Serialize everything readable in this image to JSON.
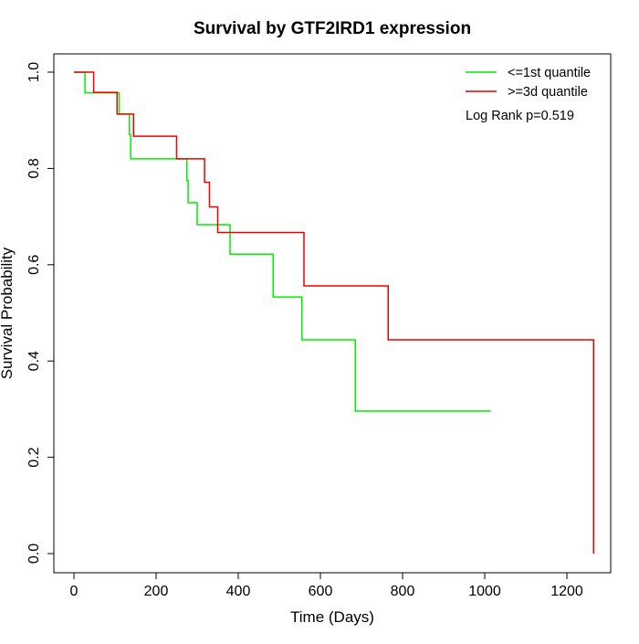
{
  "chart_data": {
    "type": "line",
    "title": "Survival by GTF2IRD1 expression",
    "xlabel": "Time (Days)",
    "ylabel": "Survival Probability",
    "xlim": [
      0,
      1280
    ],
    "ylim": [
      0,
      1.0
    ],
    "xticks": [
      0,
      200,
      400,
      600,
      800,
      1000,
      1200
    ],
    "yticks": [
      0.0,
      0.2,
      0.4,
      0.6,
      0.8,
      1.0
    ],
    "xtick_labels": [
      "0",
      "200",
      "400",
      "600",
      "800",
      "1000",
      "1200"
    ],
    "ytick_labels": [
      "0.0",
      "0.2",
      "0.4",
      "0.6",
      "0.8",
      "1.0"
    ],
    "grid": false,
    "legend_position": "top-right",
    "annotation": "Log Rank p=0.519",
    "series": [
      {
        "name": "<=1st quantile",
        "color": "#00ee00",
        "step": true,
        "x": [
          0,
          27,
          110,
          135,
          138,
          275,
          278,
          300,
          380,
          485,
          555,
          685,
          1015
        ],
        "y": [
          1.0,
          0.957,
          0.913,
          0.87,
          0.82,
          0.775,
          0.729,
          0.683,
          0.622,
          0.533,
          0.444,
          0.296,
          0.296
        ]
      },
      {
        "name": ">=3d quantile",
        "color": "#ee0000",
        "step": true,
        "x": [
          0,
          48,
          105,
          145,
          250,
          318,
          330,
          350,
          560,
          765,
          1265,
          1265
        ],
        "y": [
          1.0,
          0.958,
          0.913,
          0.867,
          0.82,
          0.771,
          0.72,
          0.667,
          0.556,
          0.444,
          0.444,
          0.0
        ]
      }
    ]
  }
}
